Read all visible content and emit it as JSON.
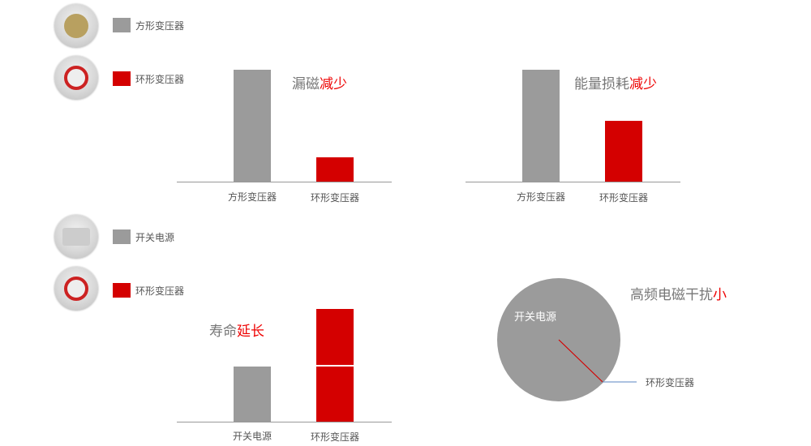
{
  "colors": {
    "gray": "#9b9b9b",
    "red": "#d40000",
    "accent_text": "#ee0000"
  },
  "legends": [
    {
      "icon": "square-transformer-photo",
      "label": "方形变压器",
      "color": "#9b9b9b"
    },
    {
      "icon": "toroidal-transformer-photo",
      "label": "环形变压器",
      "color": "#d40000"
    },
    {
      "icon": "switching-power-supply-photo",
      "label": "开关电源",
      "color": "#9b9b9b"
    },
    {
      "icon": "toroidal-transformer-photo",
      "label": "环形变压器",
      "color": "#d40000"
    }
  ],
  "chart_data": [
    {
      "type": "bar",
      "title_main": "漏磁",
      "title_highlight": "减少",
      "categories": [
        "方形变压器",
        "环形变压器"
      ],
      "values": [
        100,
        22
      ],
      "ylim": [
        0,
        100
      ]
    },
    {
      "type": "bar",
      "title_main": "能量损耗",
      "title_highlight": "减少",
      "categories": [
        "方形变压器",
        "环形变压器"
      ],
      "values": [
        100,
        54
      ],
      "ylim": [
        0,
        100
      ]
    },
    {
      "type": "bar",
      "title_main": "寿命",
      "title_highlight": "延长",
      "categories": [
        "开关电源",
        "环形变压器"
      ],
      "values": [
        100,
        204
      ],
      "ylim": [
        0,
        204
      ]
    },
    {
      "type": "pie",
      "title_main": "高频电磁干扰",
      "title_highlight": "小",
      "labels": [
        "开关电源",
        "环形变压器"
      ],
      "values": [
        99.9,
        0.1
      ]
    }
  ]
}
